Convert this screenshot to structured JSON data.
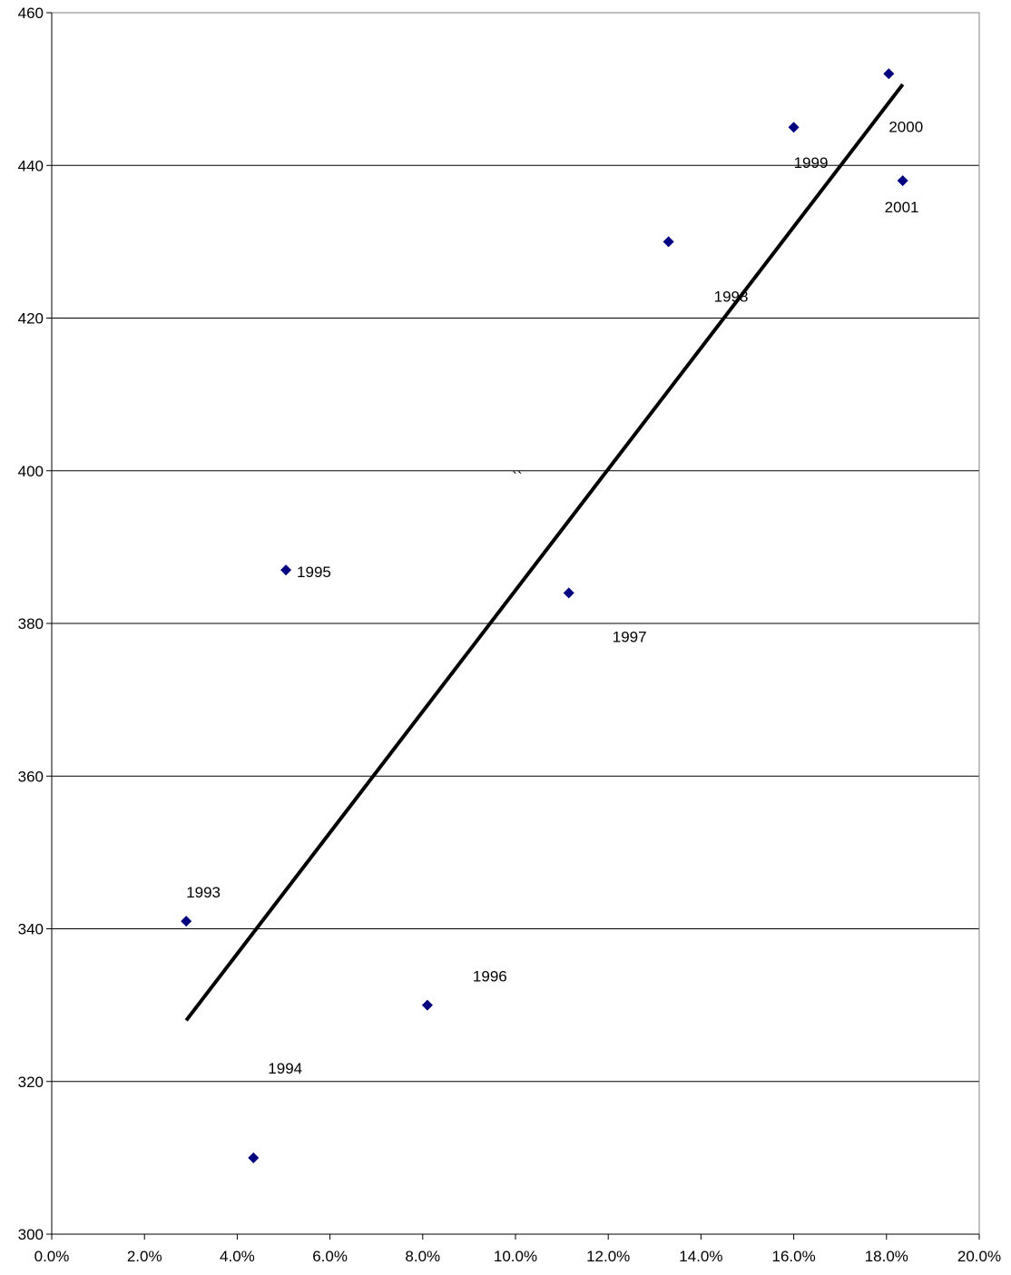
{
  "chart_data": {
    "type": "scatter",
    "title": "",
    "xlabel": "",
    "ylabel": "",
    "xlim": [
      0.0,
      0.2
    ],
    "ylim": [
      300,
      460
    ],
    "x_ticks": [
      "0.0%",
      "2.0%",
      "4.0%",
      "6.0%",
      "8.0%",
      "10.0%",
      "12.0%",
      "14.0%",
      "16.0%",
      "18.0%",
      "20.0%"
    ],
    "y_ticks": [
      "300",
      "320",
      "340",
      "360",
      "380",
      "400",
      "420",
      "440",
      "460"
    ],
    "grid": "horizontal",
    "legend": "none",
    "marker": "diamond",
    "marker_color": "#000080",
    "trendline_color": "#000000",
    "points": [
      {
        "label": "1993",
        "x": 0.029,
        "y": 341
      },
      {
        "label": "1994",
        "x": 0.0435,
        "y": 310
      },
      {
        "label": "1995",
        "x": 0.0505,
        "y": 387
      },
      {
        "label": "1996",
        "x": 0.081,
        "y": 330
      },
      {
        "label": "1997",
        "x": 0.1115,
        "y": 384
      },
      {
        "label": "1998",
        "x": 0.133,
        "y": 430
      },
      {
        "label": "1999",
        "x": 0.16,
        "y": 445
      },
      {
        "label": "2000",
        "x": 0.1805,
        "y": 452
      },
      {
        "label": "2001",
        "x": 0.1835,
        "y": 438
      }
    ],
    "trendline": {
      "x": [
        0.029,
        0.1835
      ],
      "y": [
        328,
        450.6
      ]
    },
    "annotations": [
      "``"
    ]
  }
}
